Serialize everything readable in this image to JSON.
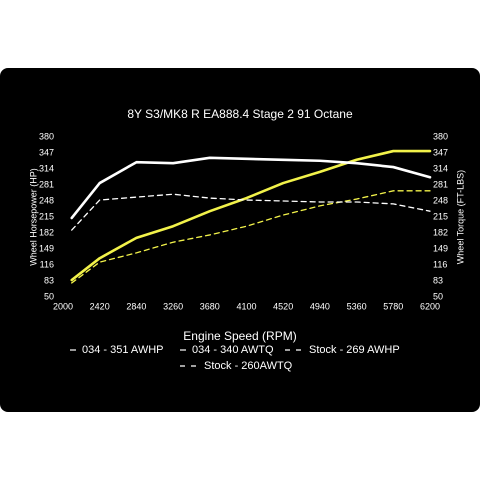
{
  "chart_data": {
    "type": "line",
    "title": "8Y S3/MK8 R EA888.4 Stage 2 91 Octane",
    "x_label": "Engine Speed (RPM)",
    "y_label": "Wheel Horsepower (HP)",
    "y2_label": "Wheel Torque (FT-LBS)",
    "x": [
      2100,
      2420,
      2840,
      3260,
      3680,
      4100,
      4520,
      4940,
      5360,
      5780,
      6200
    ],
    "xlim": [
      2000,
      6200
    ],
    "xticks": [
      2000,
      2420,
      2840,
      3260,
      3680,
      4100,
      4520,
      4940,
      5360,
      5780,
      6200
    ],
    "ylim": [
      50,
      380
    ],
    "yticks": [
      50,
      83,
      116,
      149,
      182,
      215,
      248,
      281,
      314,
      347,
      380
    ],
    "y2lim": [
      50,
      380
    ],
    "y2ticks": [
      50,
      83,
      116,
      149,
      182,
      215,
      248,
      281,
      314,
      347,
      380
    ],
    "grid": false,
    "series": [
      {
        "name": "034 - 351 AWHP",
        "color": "#f2f24a",
        "dash": false,
        "values": [
          85,
          130,
          172,
          196,
          227,
          254,
          285,
          308,
          333,
          351,
          351
        ]
      },
      {
        "name": "034 - 340 AWTQ",
        "color": "#ffffff",
        "dash": false,
        "axis": "y2",
        "values": [
          213,
          285,
          328,
          326,
          337,
          335,
          333,
          331,
          326,
          318,
          297
        ]
      },
      {
        "name": "Stock - 269 AWHP",
        "color": "#f2f24a",
        "dash": true,
        "values": [
          79,
          122,
          141,
          163,
          178,
          196,
          219,
          238,
          252,
          269,
          269
        ]
      },
      {
        "name": "Stock - 260AWTQ",
        "color": "#ffffff",
        "dash": true,
        "axis": "y2",
        "values": [
          188,
          250,
          256,
          262,
          254,
          250,
          248,
          246,
          246,
          242,
          227
        ]
      }
    ]
  }
}
